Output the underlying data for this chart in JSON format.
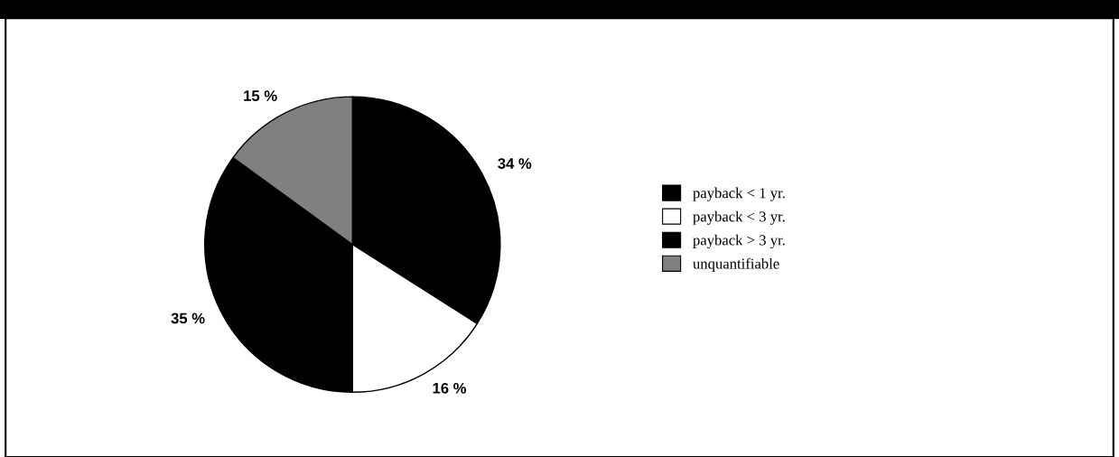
{
  "chart_data": {
    "type": "pie",
    "categories": [
      "payback < 1 yr.",
      "payback < 3 yr.",
      "payback > 3 yr.",
      "unquantifiable"
    ],
    "values": [
      34,
      16,
      35,
      15
    ],
    "colors": [
      "#000000",
      "#ffffff",
      "#000000",
      "#808080"
    ],
    "value_labels": [
      "34 %",
      "16 %",
      "35 %",
      "15 %"
    ],
    "legend": "right"
  }
}
